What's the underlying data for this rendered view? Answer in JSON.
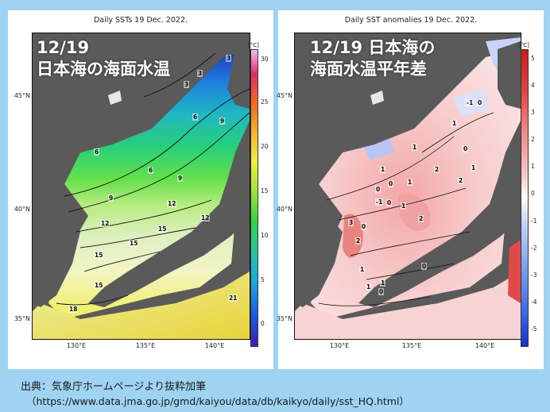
{
  "left_panel": {
    "header": "Daily SSTs 19 Dec. 2022.",
    "title_line1": "12/19",
    "title_line2": "日本海の海面水温",
    "unit": "[°C]",
    "lat_labels": [
      "45°N",
      "40°N",
      "35°N"
    ],
    "lon_labels": [
      "130°E",
      "135°E",
      "140°E"
    ],
    "colorbar_ticks": [
      "30",
      "25",
      "20",
      "15",
      "10",
      "5",
      "0"
    ],
    "contour_labels": [
      "3",
      "3",
      "3",
      "6",
      "6",
      "6",
      "9",
      "9",
      "9",
      "12",
      "12",
      "12",
      "15",
      "15",
      "15",
      "15",
      "18",
      "21"
    ],
    "colors": [
      "#3b1fb0",
      "#1aa8e0",
      "#2fd447",
      "#efef3a",
      "#f06a1e",
      "#e02a6c"
    ]
  },
  "right_panel": {
    "header": "Daily SST anomalies 19 Dec. 2022.",
    "title_line1": "12/19 日本海の",
    "title_line2": "海面水温平年差",
    "unit": "[°C]",
    "lat_labels": [
      "45°N",
      "40°N",
      "35°N"
    ],
    "lon_labels": [
      "130°E",
      "135°E",
      "140°E"
    ],
    "colorbar_ticks": [
      "5",
      "4",
      "3",
      "2",
      "1",
      "0",
      "-1",
      "-2",
      "-3",
      "-4",
      "-5"
    ],
    "contour_labels": [
      "-1",
      "0",
      "1",
      "1",
      "1",
      "0",
      "1",
      "2",
      "2",
      "0",
      "1",
      "0",
      "-1",
      "0",
      "1",
      "2",
      "3",
      "0",
      "2",
      "1",
      "1",
      "0",
      "1",
      "0"
    ],
    "colors": [
      "#1b2fc9",
      "#ffffff",
      "#c91c1c"
    ]
  },
  "source": {
    "line1": "出典：気象庁ホームページより抜粋加筆",
    "line2": "（https://www.data.jma.go.jp/gmd/kaiyou/data/db/kaikyo/daily/sst_HQ.html）"
  }
}
